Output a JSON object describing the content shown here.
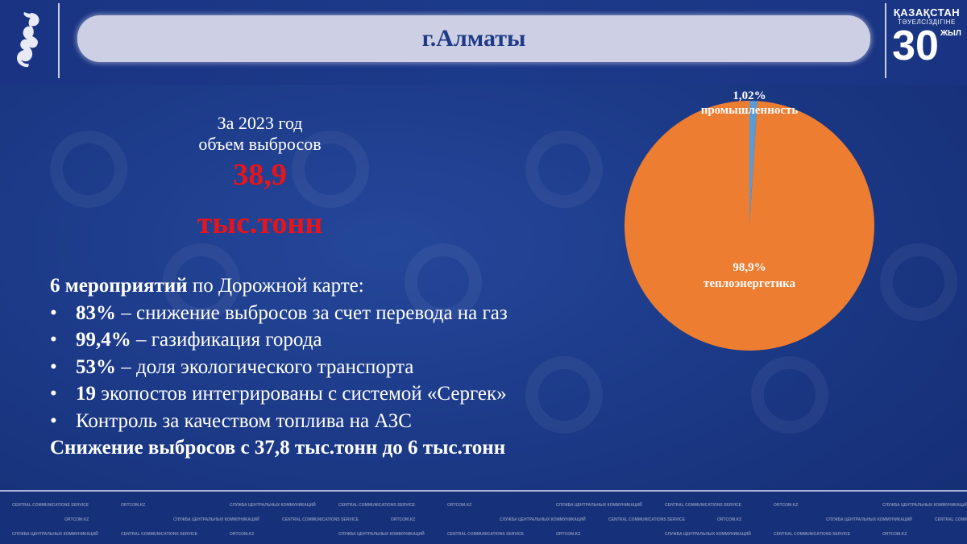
{
  "header": {
    "title": "г.Алматы",
    "logo_right": {
      "line1": "ҚАЗАҚСТАН",
      "line2": "ТӘУЕЛСІЗДІГІНЕ",
      "number": "30",
      "suffix": "ЖЫЛ"
    }
  },
  "summary": {
    "line1": "За 2023 год",
    "line2": "объем выбросов",
    "value": "38,9",
    "unit": "тыс.тонн"
  },
  "roadmap": {
    "heading_bold": "6 мероприятий",
    "heading_rest": " по Дорожной карте:",
    "items": [
      {
        "bold": "83%",
        "rest": " – снижение выбросов за счет перевода на газ"
      },
      {
        "bold": "99,4%",
        "rest": " – газификация города"
      },
      {
        "bold": "53%",
        "rest": " – доля экологического транспорта"
      },
      {
        "bold": "19",
        "rest": " экопостов интегрированы с системой «Сергек»"
      },
      {
        "bold": "",
        "rest": "Контроль за качеством топлива на АЗС"
      }
    ],
    "bullet": "•",
    "conclusion": "Снижение выбросов с 37,8 тыс.тонн до 6 тыс.тонн"
  },
  "chart_data": {
    "type": "pie",
    "slices": [
      {
        "label": "промышленность",
        "value": 1.02,
        "display": "1,02%",
        "color": "#5b9bd5"
      },
      {
        "label": "теплоэнергетика",
        "value": 98.9,
        "display": "98,9%",
        "color": "#ed7d31"
      }
    ]
  },
  "footer": {
    "watermark": [
      "CENTRAL COMMUNICATIONS SERVICE",
      "ORTCOM.KZ",
      "СЛУЖБА ЦЕНТРАЛЬНЫХ КОММУНИКАЦИЙ"
    ]
  }
}
